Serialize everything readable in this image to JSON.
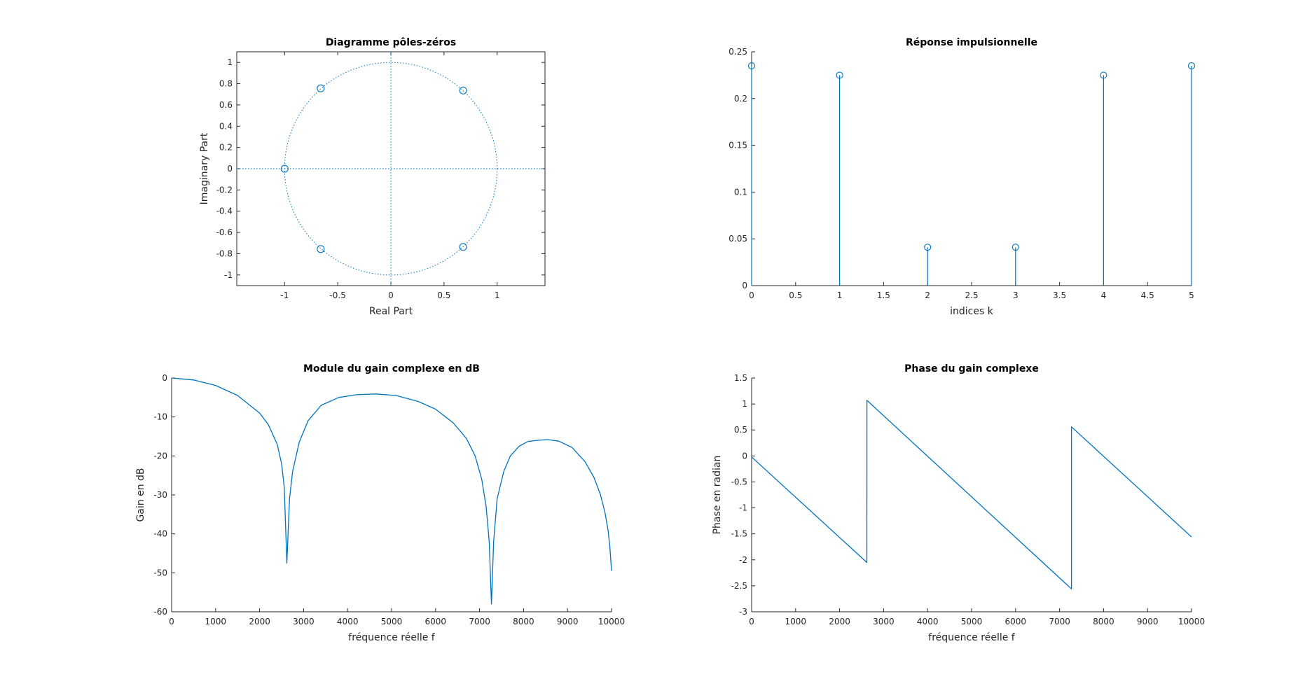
{
  "chart_data": [
    {
      "type": "scatter",
      "title": "Diagramme pôles-zéros",
      "xlabel": "Real Part",
      "ylabel": "Imaginary Part",
      "xlim": [
        -1.45,
        1.45
      ],
      "ylim": [
        -1.1,
        1.1
      ],
      "xticks": [
        -1,
        -0.5,
        0,
        0.5,
        1
      ],
      "xtick_labels": [
        "-1",
        "-0.5",
        "0",
        "0.5",
        "1"
      ],
      "yticks": [
        -1,
        -0.8,
        -0.6,
        -0.4,
        -0.2,
        0,
        0.2,
        0.4,
        0.6,
        0.8,
        1
      ],
      "ytick_labels": [
        "-1",
        "-0.8",
        "-0.6",
        "-0.4",
        "-0.2",
        "0",
        "0.2",
        "0.4",
        "0.6",
        "0.8",
        "1"
      ],
      "grid": false,
      "unit_circle": true,
      "points": [
        {
          "x": -0.66,
          "y": 0.756
        },
        {
          "x": 0.68,
          "y": 0.736
        },
        {
          "x": -1.0,
          "y": 0.0
        },
        {
          "x": -0.66,
          "y": -0.756
        },
        {
          "x": 0.68,
          "y": -0.736
        }
      ],
      "color": "#0072BD"
    },
    {
      "type": "stem",
      "title": "Réponse impulsionnelle",
      "xlabel": "indices k",
      "ylabel": "",
      "xlim": [
        0,
        5
      ],
      "ylim": [
        0,
        0.25
      ],
      "xticks": [
        0,
        0.5,
        1,
        1.5,
        2,
        2.5,
        3,
        3.5,
        4,
        4.5,
        5
      ],
      "xtick_labels": [
        "0",
        "0.5",
        "1",
        "1.5",
        "2",
        "2.5",
        "3",
        "3.5",
        "4",
        "4.5",
        "5"
      ],
      "yticks": [
        0,
        0.05,
        0.1,
        0.15,
        0.2,
        0.25
      ],
      "ytick_labels": [
        "0",
        "0.05",
        "0.1",
        "0.15",
        "0.2",
        "0.25"
      ],
      "grid": false,
      "x": [
        0,
        1,
        2,
        3,
        4,
        5
      ],
      "values": [
        0.235,
        0.225,
        0.041,
        0.041,
        0.225,
        0.235
      ],
      "color": "#0072BD"
    },
    {
      "type": "line",
      "title": "Module du gain complexe en dB",
      "xlabel": "fréquence réelle f",
      "ylabel": "Gain en dB",
      "xlim": [
        0,
        10000
      ],
      "ylim": [
        -60,
        0
      ],
      "xticks": [
        0,
        1000,
        2000,
        3000,
        4000,
        5000,
        6000,
        7000,
        8000,
        9000,
        10000
      ],
      "xtick_labels": [
        "0",
        "1000",
        "2000",
        "3000",
        "4000",
        "5000",
        "6000",
        "7000",
        "8000",
        "9000",
        "10000"
      ],
      "yticks": [
        -60,
        -50,
        -40,
        -30,
        -20,
        -10,
        0
      ],
      "ytick_labels": [
        "-60",
        "-50",
        "-40",
        "-30",
        "-20",
        "-10",
        "0"
      ],
      "grid": false,
      "x": [
        0,
        500,
        1000,
        1500,
        2000,
        2200,
        2400,
        2500,
        2560,
        2620,
        2680,
        2750,
        2900,
        3100,
        3400,
        3800,
        4200,
        4650,
        5100,
        5600,
        6000,
        6400,
        6700,
        6900,
        7050,
        7150,
        7220,
        7270,
        7320,
        7400,
        7550,
        7700,
        7900,
        8100,
        8300,
        8550,
        8800,
        9100,
        9400,
        9600,
        9750,
        9850,
        9920,
        9960,
        10000
      ],
      "values": [
        0,
        -0.5,
        -1.9,
        -4.5,
        -9.0,
        -12.0,
        -17.0,
        -22.0,
        -28.0,
        -47.5,
        -31.0,
        -24.0,
        -16.5,
        -11.0,
        -7.0,
        -5.0,
        -4.3,
        -4.1,
        -4.5,
        -6.0,
        -8.0,
        -11.5,
        -15.5,
        -20.0,
        -26.0,
        -33.0,
        -42.0,
        -58.0,
        -42.0,
        -31.0,
        -24.0,
        -20.0,
        -17.5,
        -16.3,
        -16.0,
        -15.8,
        -16.2,
        -17.8,
        -21.5,
        -25.5,
        -30.0,
        -34.5,
        -39.0,
        -43.0,
        -49.5
      ],
      "color": "#0072BD"
    },
    {
      "type": "line",
      "title": "Phase du gain complexe",
      "xlabel": "fréquence réelle f",
      "ylabel": "Phase en radian",
      "xlim": [
        0,
        10000
      ],
      "ylim": [
        -3,
        1.5
      ],
      "xticks": [
        0,
        1000,
        2000,
        3000,
        4000,
        5000,
        6000,
        7000,
        8000,
        9000,
        10000
      ],
      "xtick_labels": [
        "0",
        "1000",
        "2000",
        "3000",
        "4000",
        "5000",
        "6000",
        "7000",
        "8000",
        "9000",
        "10000"
      ],
      "yticks": [
        -3,
        -2.5,
        -2,
        -1.5,
        -1,
        -0.5,
        0,
        0.5,
        1,
        1.5
      ],
      "ytick_labels": [
        "-3",
        "-2.5",
        "-2",
        "-1.5",
        "-1",
        "-0.5",
        "0",
        "0.5",
        "1",
        "1.5"
      ],
      "grid": false,
      "x": [
        0,
        2620,
        2621,
        7270,
        7271,
        10000
      ],
      "values": [
        -0.02,
        -2.05,
        1.07,
        -2.56,
        0.56,
        -1.56
      ],
      "color": "#0072BD"
    }
  ]
}
